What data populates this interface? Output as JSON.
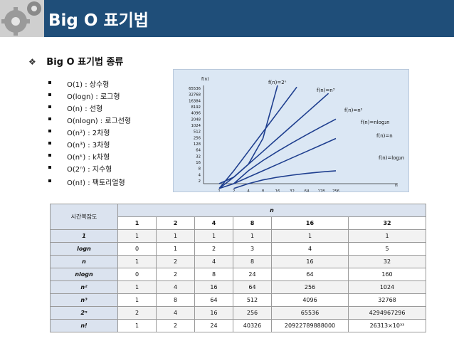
{
  "header": {
    "title": "Big O 표기법"
  },
  "subtitle": {
    "bullet": "❖",
    "text": "Big O 표기법 종류"
  },
  "list_items": [
    "O(1) : 상수형",
    "O(logn) : 로그형",
    "O(n) : 선형",
    "O(nlogn) : 로그선형",
    "O(n²) : 2차형",
    "O(n³) : 3차형",
    "O(nᵏ) : k차형",
    "O(2ⁿ) : 지수형",
    "O(n!) : 팩토리얼형"
  ],
  "chart_data": {
    "type": "line",
    "ylabel": "f(n)",
    "xlabel": "n",
    "x_ticks": [
      "1",
      "2",
      "4",
      "8",
      "16",
      "32",
      "64",
      "128",
      "256"
    ],
    "y_ticks": [
      "2",
      "4",
      "8",
      "16",
      "32",
      "64",
      "128",
      "256",
      "512",
      "1024",
      "2048",
      "4096",
      "8192",
      "16384",
      "32768",
      "65536"
    ],
    "x_scale": "log2",
    "y_scale": "log2",
    "series": [
      {
        "name": "f(n)=2ⁿ",
        "x": [
          1,
          2,
          4,
          8,
          16
        ],
        "y": [
          2,
          4,
          16,
          256,
          65536
        ]
      },
      {
        "name": "f(n)=n³",
        "x": [
          1,
          2,
          4,
          8,
          16,
          32,
          40
        ],
        "y": [
          1,
          8,
          64,
          512,
          4096,
          32768,
          64000
        ]
      },
      {
        "name": "f(n)=n²",
        "x": [
          1,
          2,
          4,
          8,
          16,
          32,
          64,
          128,
          180
        ],
        "y": [
          1,
          4,
          16,
          64,
          256,
          1024,
          4096,
          16384,
          32400
        ]
      },
      {
        "name": "f(n)=nlog₂n",
        "x": [
          2,
          4,
          8,
          16,
          32,
          64,
          128,
          256
        ],
        "y": [
          2,
          8,
          24,
          64,
          160,
          384,
          896,
          2048
        ]
      },
      {
        "name": "f(n)=n",
        "x": [
          1,
          2,
          4,
          8,
          16,
          32,
          64,
          128,
          256
        ],
        "y": [
          1,
          2,
          4,
          8,
          16,
          32,
          64,
          128,
          256
        ]
      },
      {
        "name": "f(n)=log₂n",
        "x": [
          2,
          4,
          8,
          16,
          32,
          64,
          128,
          256
        ],
        "y": [
          1,
          2,
          3,
          4,
          5,
          6,
          7,
          8
        ]
      }
    ],
    "colors": {
      "background": "#dbe7f4",
      "line": "#1f3f8f"
    }
  },
  "table": {
    "corner": "시간복잡도",
    "n_label": "n",
    "columns": [
      "1",
      "2",
      "4",
      "8",
      "16",
      "32"
    ],
    "rows": [
      {
        "label": "1",
        "values": [
          "1",
          "1",
          "1",
          "1",
          "1",
          "1"
        ]
      },
      {
        "label": "logn",
        "values": [
          "0",
          "1",
          "2",
          "3",
          "4",
          "5"
        ]
      },
      {
        "label": "n",
        "values": [
          "1",
          "2",
          "4",
          "8",
          "16",
          "32"
        ]
      },
      {
        "label": "nlogn",
        "values": [
          "0",
          "2",
          "8",
          "24",
          "64",
          "160"
        ]
      },
      {
        "label": "n²",
        "values": [
          "1",
          "4",
          "16",
          "64",
          "256",
          "1024"
        ]
      },
      {
        "label": "n³",
        "values": [
          "1",
          "8",
          "64",
          "512",
          "4096",
          "32768"
        ]
      },
      {
        "label": "2ⁿ",
        "values": [
          "2",
          "4",
          "16",
          "256",
          "65536",
          "4294967296"
        ]
      },
      {
        "label": "n!",
        "values": [
          "1",
          "2",
          "24",
          "40326",
          "20922789888000",
          "26313×10³³"
        ]
      }
    ]
  },
  "colors": {
    "header_bg": "#1f4e79",
    "table_header_bg": "#dbe3ef"
  }
}
